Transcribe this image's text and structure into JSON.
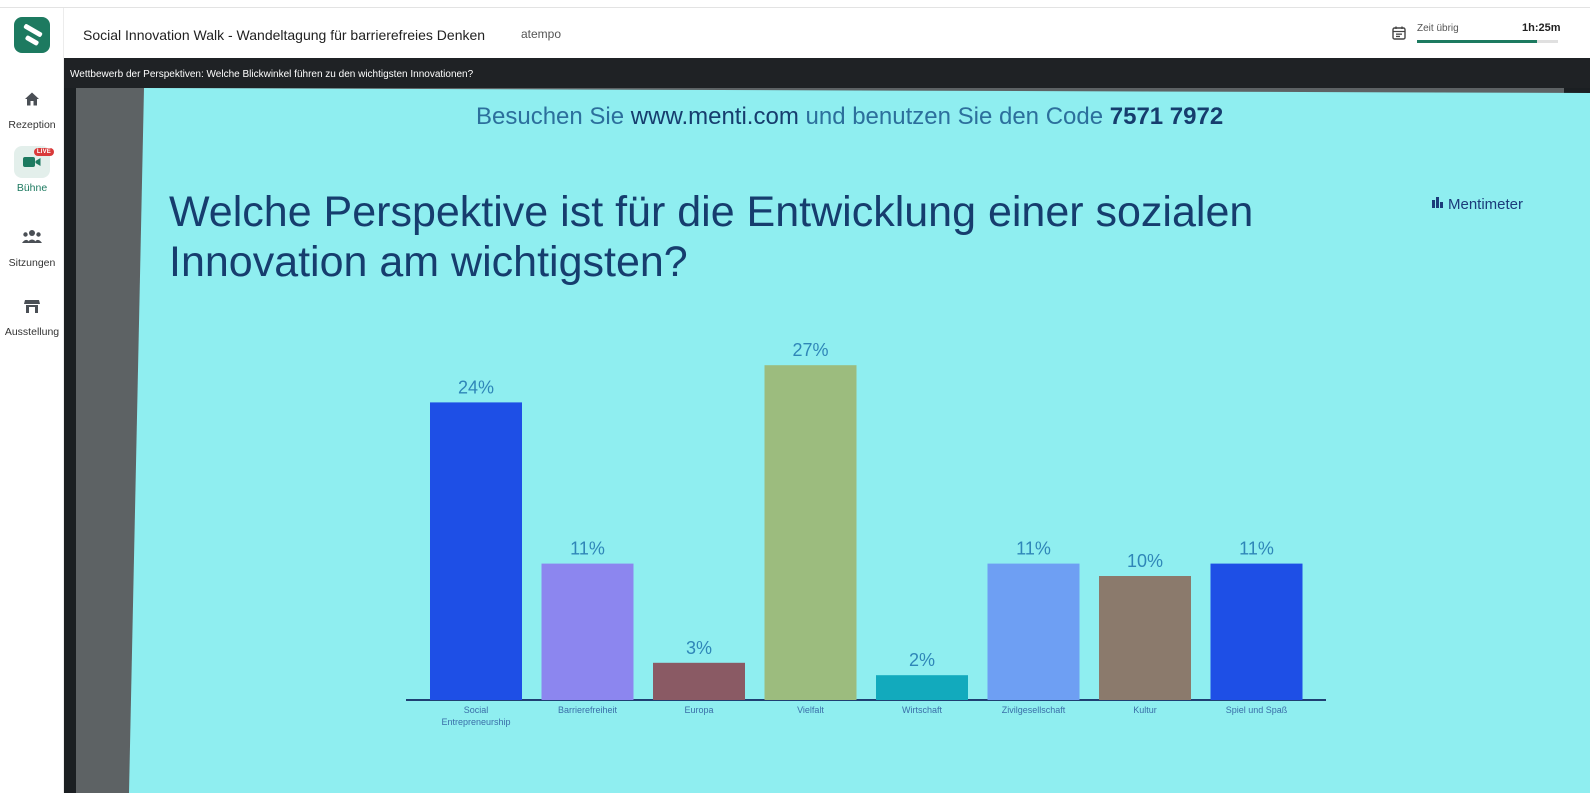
{
  "app": {
    "event_title": "Social Innovation Walk - Wandeltagung für barrierefreies Denken",
    "organizer": "atempo"
  },
  "sidebar": {
    "items": [
      {
        "label": "Rezeption",
        "icon": "home-icon",
        "active": false
      },
      {
        "label": "Bühne",
        "icon": "video-camera-icon",
        "active": true,
        "badge": "LIVE"
      },
      {
        "label": "Sitzungen",
        "icon": "people-group-icon",
        "active": false
      },
      {
        "label": "Ausstellung",
        "icon": "booth-icon",
        "active": false
      }
    ]
  },
  "timer": {
    "label": "Zeit übrig",
    "value": "1h:25m",
    "progress": 0.85
  },
  "session": {
    "title": "Wettbewerb der Perspektiven: Welche Blickwinkel führen zu den wichtigsten Innovationen?"
  },
  "slide": {
    "instruction_prefix": "Besuchen Sie",
    "url": "www.menti.com",
    "instruction_middle": "und benutzen Sie den Code",
    "code": "7571 7972",
    "question_line1": "Welche Perspektive ist für die Entwicklung einer sozialen",
    "question_line2": "Innovation am wichtigsten?",
    "brand": "Mentimeter"
  },
  "chart_data": {
    "type": "bar",
    "categories": [
      "Social Entrepreneurship",
      "Barrierefreiheit",
      "Europa",
      "Vielfalt",
      "Wirtschaft",
      "Zivilgesellschaft",
      "Kultur",
      "Spiel und Spaß"
    ],
    "values": [
      24,
      11,
      3,
      27,
      2,
      11,
      10,
      11
    ],
    "value_labels": [
      "24%",
      "11%",
      "3%",
      "27%",
      "2%",
      "11%",
      "10%",
      "11%"
    ],
    "colors": [
      "#1e4fe6",
      "#8c86ef",
      "#8a5a64",
      "#9cbc7e",
      "#12aabd",
      "#6e9ff3",
      "#8b7a6c",
      "#1e4fe6"
    ],
    "grid": false
  },
  "colors": {
    "accent": "#1d7a60",
    "live": "#d93a3a",
    "slide_background": "#8feef0",
    "slide_text": "#163d6e"
  }
}
